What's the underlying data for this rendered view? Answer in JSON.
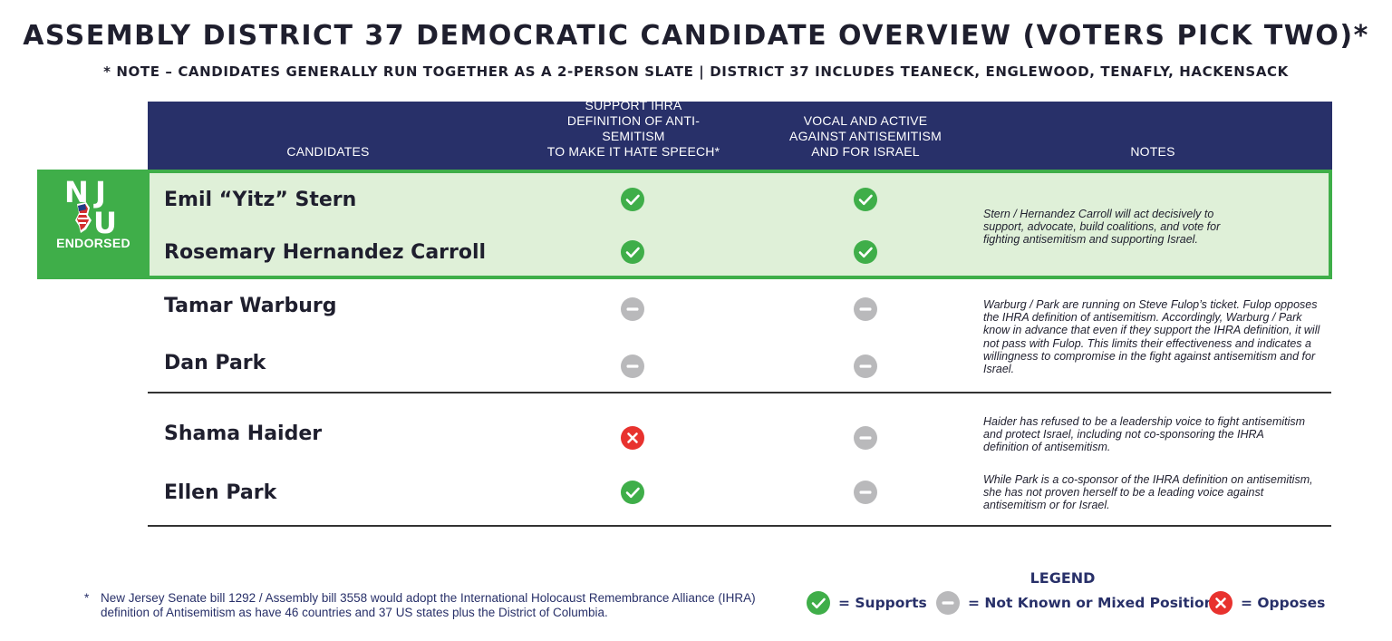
{
  "title": "ASSEMBLY DISTRICT 37 DEMOCRATIC CANDIDATE OVERVIEW (VOTERS PICK TWO)*",
  "subtitle": "* NOTE – CANDIDATES GENERALLY RUN TOGETHER AS A 2-PERSON SLATE | DISTRICT 37 INCLUDES TEANECK, ENGLEWOOD, TENAFLY, HACKENSACK",
  "colors": {
    "header_bg": "#283069",
    "endorse_green": "#3fae49",
    "endorse_bg": "#dff0d8",
    "supports": "#3fae49",
    "unknown": "#b9b9bb",
    "opposes": "#e8322e"
  },
  "table": {
    "headers": {
      "candidates": "CANDIDATES",
      "ihra_line1": "SUPPORT IHRA",
      "ihra_line2": "DEFINITION OF ANTI-SEMITISM",
      "ihra_line3": "TO MAKE IT HATE SPEECH*",
      "vocal_line1": "VOCAL AND ACTIVE",
      "vocal_line2": "AGAINST ANTISEMITISM",
      "vocal_line3": "AND FOR ISRAEL",
      "notes": "NOTES"
    },
    "endorsement": {
      "logo_letters": "NJU",
      "label": "ENDORSED"
    },
    "candidates": [
      {
        "name": "Emil “Yitz” Stern",
        "ihra": "supports",
        "vocal": "supports"
      },
      {
        "name": "Rosemary Hernandez Carroll",
        "ihra": "supports",
        "vocal": "supports"
      },
      {
        "name": "Tamar Warburg",
        "ihra": "unknown",
        "vocal": "unknown"
      },
      {
        "name": "Dan Park",
        "ihra": "unknown",
        "vocal": "unknown"
      },
      {
        "name": "Shama Haider",
        "ihra": "opposes",
        "vocal": "unknown"
      },
      {
        "name": "Ellen Park",
        "ihra": "supports",
        "vocal": "unknown"
      }
    ],
    "notes": [
      "Stern / Hernandez Carroll will act decisively to support, advocate, build coalitions, and vote for fighting antisemitism and supporting Israel.",
      "Warburg / Park are running on Steve Fulop’s ticket. Fulop opposes the IHRA definition of antisemitism. Accordingly, Warburg / Park know in advance that even if they support the IHRA definition, it will not pass with Fulop. This limits their effectiveness and indicates a willingness to compromise in the fight against antisemitism and for Israel.",
      "Haider has refused to be a leadership voice to fight antisemitism and protect Israel, including not co-sponsoring the IHRA definition of antisemitism.",
      "While Park is a co-sponsor of the IHRA definition on antisemitism, she has not proven herself to be a leading voice against antisemitism or for Israel."
    ]
  },
  "footnote": {
    "star": "*",
    "text": "New Jersey Senate bill 1292 / Assembly bill 3558 would adopt the International Holocaust Remembrance Alliance (IHRA) definition of Antisemitism as have 46 countries and 37 US states plus the District of Columbia."
  },
  "legend": {
    "title": "LEGEND",
    "supports": "= Supports",
    "unknown": "= Not Known or Mixed Position",
    "opposes": "= Opposes"
  }
}
